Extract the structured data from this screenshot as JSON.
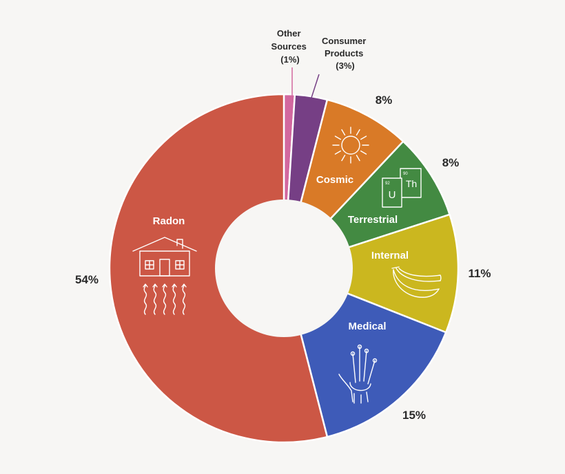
{
  "chart_data": {
    "type": "pie",
    "donut": true,
    "title": "",
    "start_angle_deg": 0,
    "direction": "clockwise",
    "slices": [
      {
        "label": "Other Sources",
        "value": 1,
        "display": "(1%)",
        "color": "#d2689f"
      },
      {
        "label": "Consumer Products",
        "value": 3,
        "display": "(3%)",
        "color": "#763f85"
      },
      {
        "label": "Cosmic",
        "value": 8,
        "display": "8%",
        "color": "#d97a27"
      },
      {
        "label": "Terrestrial",
        "value": 8,
        "display": "8%",
        "color": "#438a42"
      },
      {
        "label": "Internal",
        "value": 11,
        "display": "11%",
        "color": "#cbb71f"
      },
      {
        "label": "Medical",
        "value": 15,
        "display": "15%",
        "color": "#3e5bb8"
      },
      {
        "label": "Radon",
        "value": 54,
        "display": "54%",
        "color": "#cc5745"
      }
    ],
    "other_label_lines": [
      "Other",
      "Sources",
      "(1%)"
    ],
    "consumer_label_lines": [
      "Consumer",
      "Products",
      "(3%)"
    ],
    "element_symbols": {
      "u_number": "92",
      "u_symbol": "U",
      "th_number": "90",
      "th_symbol": "Th"
    },
    "icons": {
      "cosmic": "sun-icon",
      "terrestrial": "periodic-elements-icon",
      "internal": "bananas-icon",
      "medical": "hand-xray-icon",
      "radon": "house-radon-icon"
    },
    "colors": {
      "background": "#f7f6f4",
      "hole": "#f7f6f4",
      "separator": "#ffffff"
    }
  }
}
